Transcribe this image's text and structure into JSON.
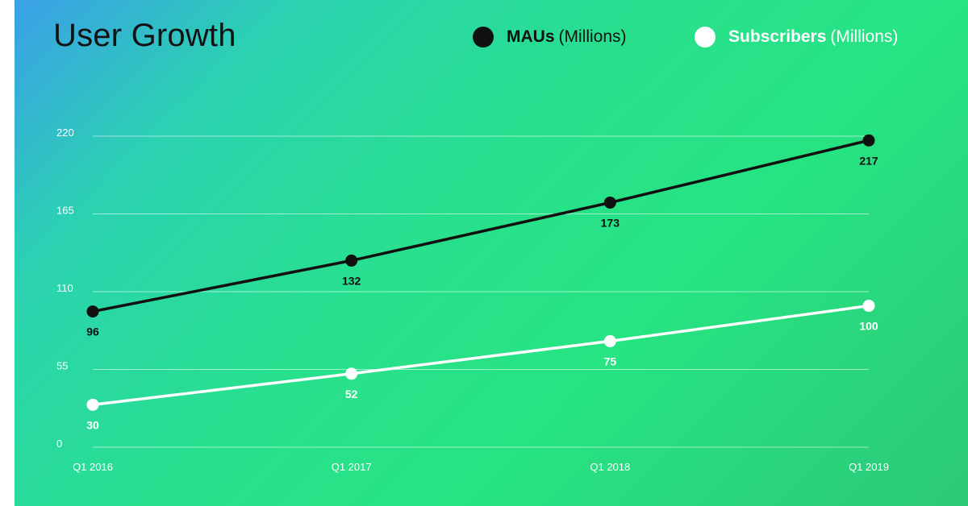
{
  "chart_data": {
    "type": "line",
    "title": "User Growth",
    "categories": [
      "Q1 2016",
      "Q1 2017",
      "Q1 2018",
      "Q1 2019"
    ],
    "ylim": [
      0,
      220
    ],
    "yticks": [
      0,
      55,
      110,
      165,
      220
    ],
    "grid": true,
    "legend_position": "top-right",
    "series": [
      {
        "key": "mau",
        "name": "MAUs",
        "unit": "(Millions)",
        "color": "#111111",
        "values": [
          96,
          132,
          173,
          217
        ]
      },
      {
        "key": "subscribers",
        "name": "Subscribers",
        "unit": "(Millions)",
        "color": "#ffffff",
        "values": [
          30,
          52,
          75,
          100
        ]
      }
    ]
  }
}
